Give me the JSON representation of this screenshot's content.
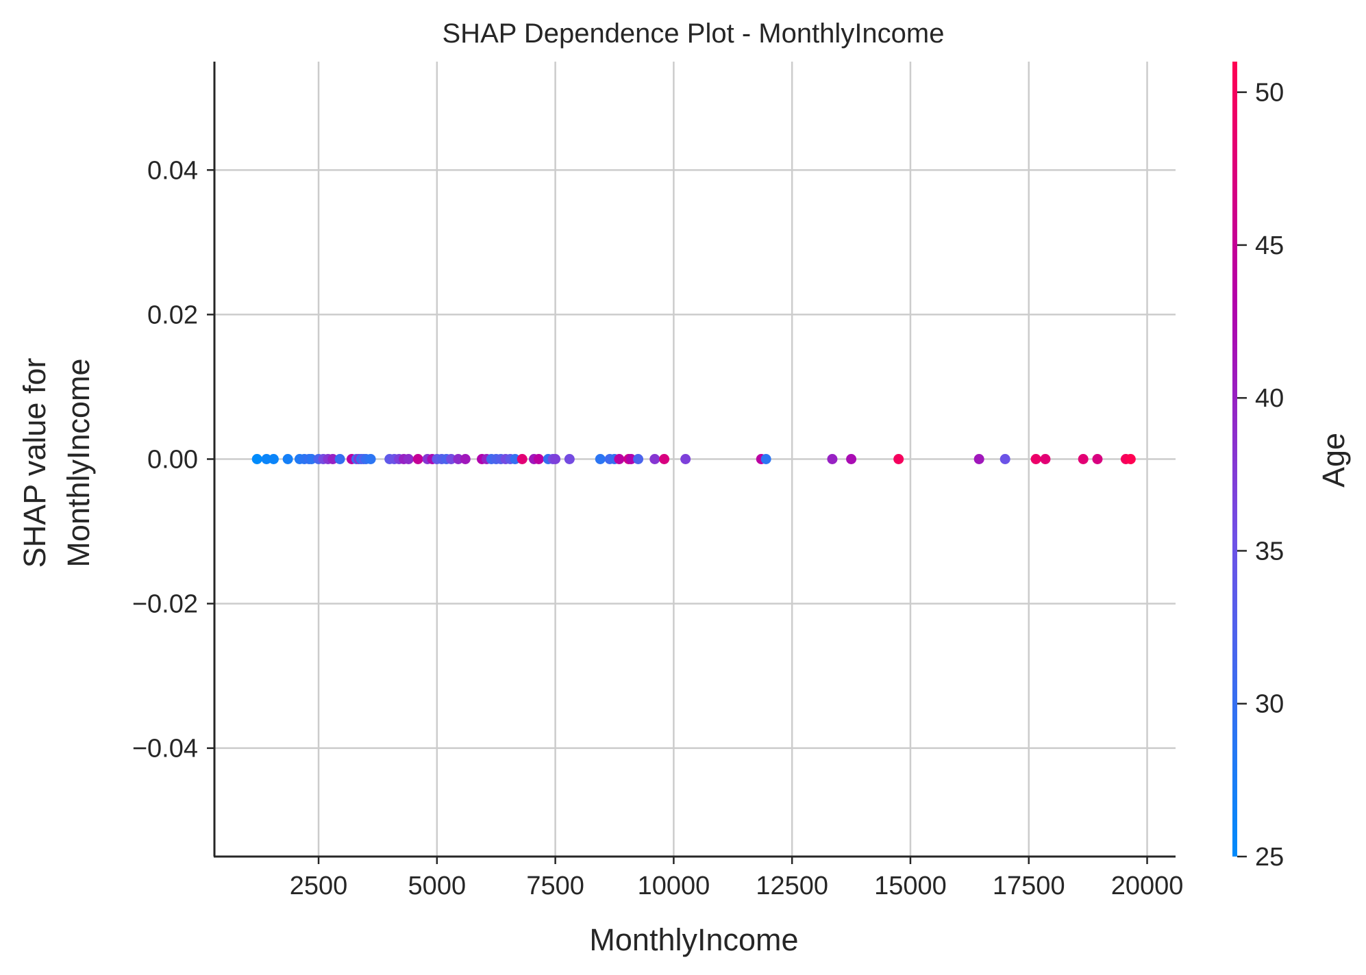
{
  "chart_data": {
    "type": "scatter",
    "title": "SHAP Dependence Plot - MonthlyIncome",
    "xlabel": "MonthlyIncome",
    "ylabel_lines": [
      "SHAP value for",
      "MonthlyIncome"
    ],
    "xlim": [
      300,
      20600
    ],
    "ylim": [
      -0.055,
      0.055
    ],
    "xticks": [
      2500,
      5000,
      7500,
      10000,
      12500,
      15000,
      17500,
      20000
    ],
    "xtick_labels": [
      "2500",
      "5000",
      "7500",
      "10000",
      "12500",
      "15000",
      "17500",
      "20000"
    ],
    "yticks": [
      0.04,
      0.02,
      0.0,
      -0.02,
      -0.04
    ],
    "ytick_labels": [
      "0.04",
      "0.02",
      "0.00",
      "−0.02",
      "−0.04"
    ],
    "grid": true,
    "colorbar": {
      "label": "Age",
      "min": 25,
      "max": 51,
      "ticks": [
        25,
        30,
        35,
        40,
        45,
        50
      ],
      "tick_labels": [
        "25",
        "30",
        "35",
        "40",
        "45",
        "50"
      ],
      "colors": [
        "#008bfb",
        "#6f51e6",
        "#b300aa",
        "#ff0052"
      ]
    },
    "points": [
      {
        "x": 1200,
        "y": 0.0,
        "age": 25
      },
      {
        "x": 1400,
        "y": 0.0,
        "age": 26
      },
      {
        "x": 1550,
        "y": 0.0,
        "age": 26
      },
      {
        "x": 1850,
        "y": 0.0,
        "age": 27
      },
      {
        "x": 2100,
        "y": 0.0,
        "age": 28
      },
      {
        "x": 2200,
        "y": 0.0,
        "age": 29
      },
      {
        "x": 2300,
        "y": 0.0,
        "age": 30
      },
      {
        "x": 2350,
        "y": 0.0,
        "age": 29
      },
      {
        "x": 2500,
        "y": 0.0,
        "age": 32
      },
      {
        "x": 2600,
        "y": 0.0,
        "age": 36
      },
      {
        "x": 2700,
        "y": 0.0,
        "age": 38
      },
      {
        "x": 2800,
        "y": 0.0,
        "age": 40
      },
      {
        "x": 2950,
        "y": 0.0,
        "age": 30
      },
      {
        "x": 3200,
        "y": 0.0,
        "age": 44
      },
      {
        "x": 3300,
        "y": 0.0,
        "age": 31
      },
      {
        "x": 3350,
        "y": 0.0,
        "age": 38
      },
      {
        "x": 3400,
        "y": 0.0,
        "age": 30
      },
      {
        "x": 3450,
        "y": 0.0,
        "age": 33
      },
      {
        "x": 3500,
        "y": 0.0,
        "age": 30
      },
      {
        "x": 3600,
        "y": 0.0,
        "age": 29
      },
      {
        "x": 4000,
        "y": 0.0,
        "age": 34
      },
      {
        "x": 4100,
        "y": 0.0,
        "age": 35
      },
      {
        "x": 4200,
        "y": 0.0,
        "age": 37
      },
      {
        "x": 4300,
        "y": 0.0,
        "age": 40
      },
      {
        "x": 4400,
        "y": 0.0,
        "age": 39
      },
      {
        "x": 4600,
        "y": 0.0,
        "age": 45
      },
      {
        "x": 4800,
        "y": 0.0,
        "age": 38
      },
      {
        "x": 4900,
        "y": 0.0,
        "age": 42
      },
      {
        "x": 5000,
        "y": 0.0,
        "age": 34
      },
      {
        "x": 5100,
        "y": 0.0,
        "age": 33
      },
      {
        "x": 5200,
        "y": 0.0,
        "age": 32
      },
      {
        "x": 5300,
        "y": 0.0,
        "age": 36
      },
      {
        "x": 5450,
        "y": 0.0,
        "age": 39
      },
      {
        "x": 5600,
        "y": 0.0,
        "age": 41
      },
      {
        "x": 5950,
        "y": 0.0,
        "age": 43
      },
      {
        "x": 6050,
        "y": 0.0,
        "age": 40
      },
      {
        "x": 6150,
        "y": 0.0,
        "age": 31
      },
      {
        "x": 6250,
        "y": 0.0,
        "age": 32
      },
      {
        "x": 6350,
        "y": 0.0,
        "age": 33
      },
      {
        "x": 6450,
        "y": 0.0,
        "age": 36
      },
      {
        "x": 6550,
        "y": 0.0,
        "age": 34
      },
      {
        "x": 6650,
        "y": 0.0,
        "age": 30
      },
      {
        "x": 6800,
        "y": 0.0,
        "age": 48
      },
      {
        "x": 7050,
        "y": 0.0,
        "age": 41
      },
      {
        "x": 7150,
        "y": 0.0,
        "age": 44
      },
      {
        "x": 7350,
        "y": 0.0,
        "age": 30
      },
      {
        "x": 7450,
        "y": 0.0,
        "age": 36
      },
      {
        "x": 7500,
        "y": 0.0,
        "age": 37
      },
      {
        "x": 7800,
        "y": 0.0,
        "age": 36
      },
      {
        "x": 8450,
        "y": 0.0,
        "age": 29
      },
      {
        "x": 8650,
        "y": 0.0,
        "age": 31
      },
      {
        "x": 8750,
        "y": 0.0,
        "age": 30
      },
      {
        "x": 8850,
        "y": 0.0,
        "age": 44
      },
      {
        "x": 9050,
        "y": 0.0,
        "age": 46
      },
      {
        "x": 9100,
        "y": 0.0,
        "age": 43
      },
      {
        "x": 9250,
        "y": 0.0,
        "age": 32
      },
      {
        "x": 9600,
        "y": 0.0,
        "age": 38
      },
      {
        "x": 9800,
        "y": 0.0,
        "age": 47
      },
      {
        "x": 10250,
        "y": 0.0,
        "age": 37
      },
      {
        "x": 11850,
        "y": 0.0,
        "age": 44
      },
      {
        "x": 11950,
        "y": 0.0,
        "age": 29
      },
      {
        "x": 13350,
        "y": 0.0,
        "age": 40
      },
      {
        "x": 13750,
        "y": 0.0,
        "age": 42
      },
      {
        "x": 14750,
        "y": 0.0,
        "age": 50
      },
      {
        "x": 16450,
        "y": 0.0,
        "age": 41
      },
      {
        "x": 17000,
        "y": 0.0,
        "age": 35
      },
      {
        "x": 17650,
        "y": 0.0,
        "age": 49
      },
      {
        "x": 17850,
        "y": 0.0,
        "age": 48
      },
      {
        "x": 18650,
        "y": 0.0,
        "age": 48
      },
      {
        "x": 18950,
        "y": 0.0,
        "age": 47
      },
      {
        "x": 19550,
        "y": 0.0,
        "age": 50
      },
      {
        "x": 19650,
        "y": 0.0,
        "age": 51
      }
    ]
  }
}
